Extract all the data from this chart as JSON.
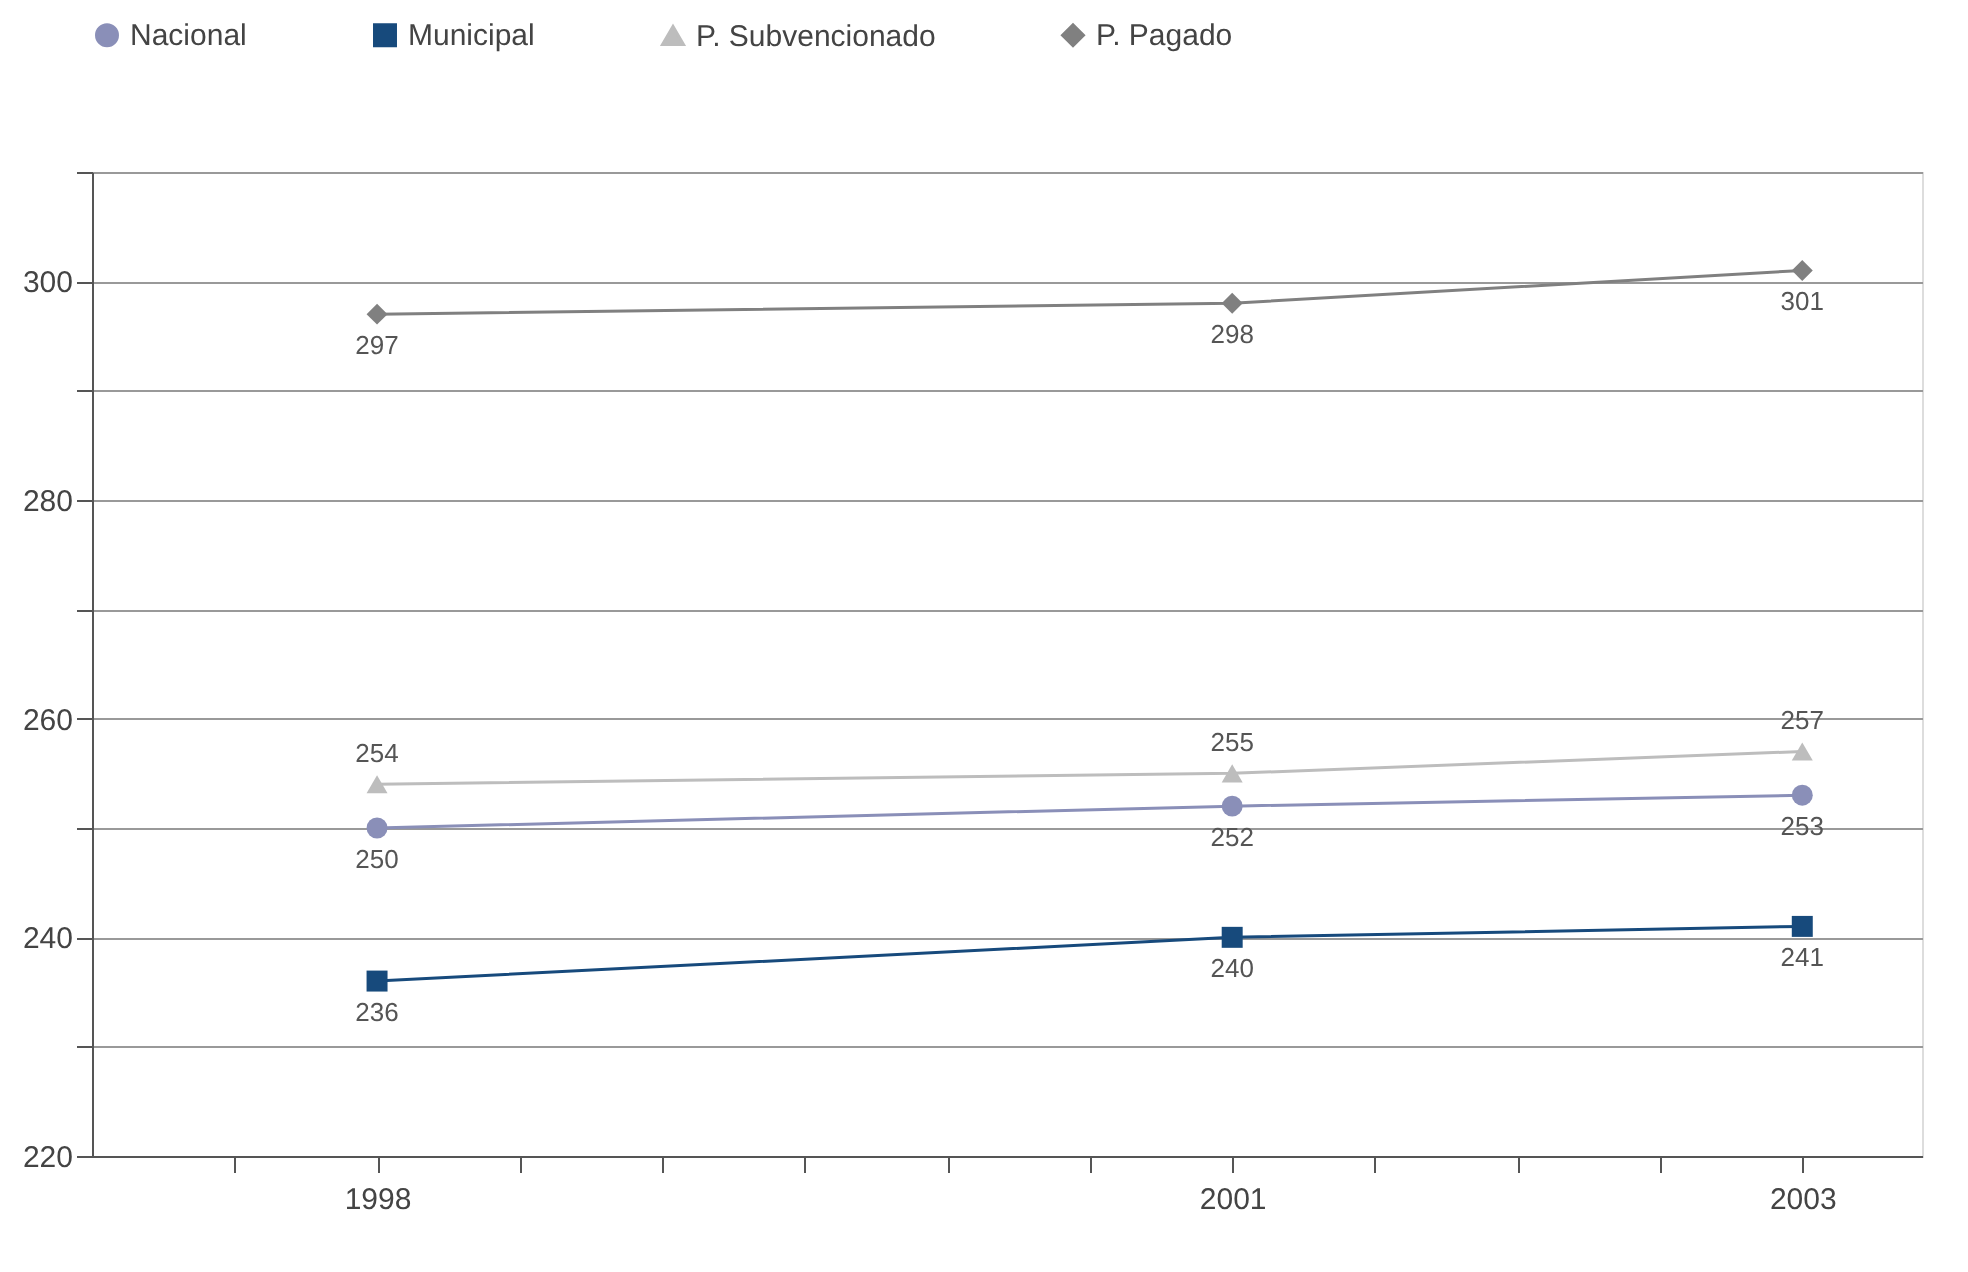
{
  "chart_data": {
    "type": "line",
    "x": [
      1998,
      2001,
      2003
    ],
    "series": [
      {
        "name": "Nacional",
        "color": "#8a8fb8",
        "marker": "circle",
        "values": [
          250,
          252,
          253
        ]
      },
      {
        "name": "Municipal",
        "color": "#174a7c",
        "marker": "square",
        "values": [
          236,
          240,
          241
        ]
      },
      {
        "name": "P. Subvencionado",
        "color": "#bdbdbd",
        "marker": "triangle",
        "values": [
          254,
          255,
          257
        ]
      },
      {
        "name": "P. Pagado",
        "color": "#808080",
        "marker": "diamond",
        "values": [
          297,
          298,
          301
        ]
      }
    ],
    "xlim": [
      1997,
      2003.42
    ],
    "xticks": [
      {
        "value": 1997.5,
        "label": null
      },
      1998,
      {
        "value": 1998.5,
        "label": null
      },
      {
        "value": 1999,
        "label": null
      },
      {
        "value": 1999.5,
        "label": null
      },
      {
        "value": 2000,
        "label": null
      },
      {
        "value": 2000.5,
        "label": null
      },
      2001,
      {
        "value": 2001.5,
        "label": null
      },
      {
        "value": 2002,
        "label": null
      },
      {
        "value": 2002.5,
        "label": null
      },
      2003
    ],
    "ylim": [
      220,
      310
    ],
    "yticks": [
      220,
      {
        "value": 230,
        "label": null
      },
      240,
      {
        "value": 250,
        "label": null
      },
      260,
      {
        "value": 270,
        "label": null
      },
      280,
      {
        "value": 290,
        "label": null
      },
      300,
      {
        "value": 310,
        "label": null
      }
    ],
    "grid": "y",
    "legend": "top",
    "data_labels": true,
    "line_style": "solid"
  }
}
